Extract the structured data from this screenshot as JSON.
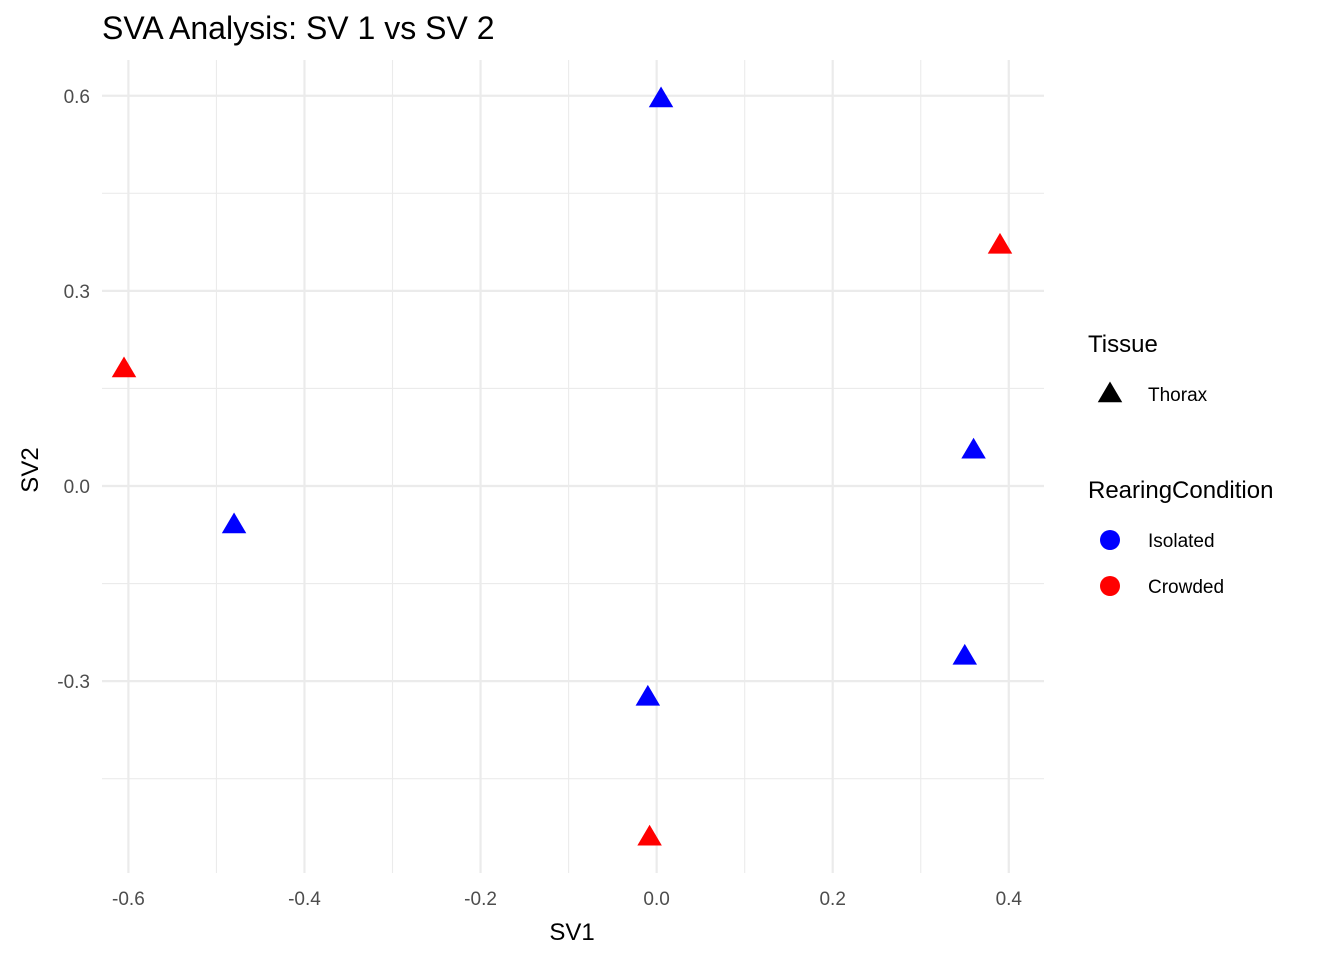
{
  "chart_data": {
    "type": "scatter",
    "title": "SVA Analysis: SV 1  vs SV 2",
    "xlabel": "SV1",
    "ylabel": "SV2",
    "xlim": [
      -0.63,
      0.44
    ],
    "ylim": [
      -0.595,
      0.655
    ],
    "x_ticks": [
      -0.6,
      -0.4,
      -0.2,
      0.0,
      0.2,
      0.4
    ],
    "x_tick_labels": [
      "-0.6",
      "-0.4",
      "-0.2",
      "0.0",
      "0.2",
      "0.4"
    ],
    "y_ticks": [
      -0.3,
      0.0,
      0.3,
      0.6
    ],
    "y_tick_labels": [
      "-0.3",
      "0.0",
      "0.3",
      "0.6"
    ],
    "grid": true,
    "legend_position": "right",
    "legends": [
      {
        "title": "Tissue",
        "entries": [
          {
            "label": "Thorax",
            "shape": "triangle",
            "color": "#000000"
          }
        ]
      },
      {
        "title": "RearingCondition",
        "entries": [
          {
            "label": "Isolated",
            "shape": "circle",
            "color": "#0000FF"
          },
          {
            "label": "Crowded",
            "shape": "circle",
            "color": "#FF0000"
          }
        ]
      }
    ],
    "series": [
      {
        "name": "Isolated",
        "color": "#0000FF",
        "shape": "triangle",
        "points": [
          {
            "x": 0.005,
            "y": 0.595
          },
          {
            "x": 0.36,
            "y": 0.055
          },
          {
            "x": -0.48,
            "y": -0.06
          },
          {
            "x": 0.35,
            "y": -0.262
          },
          {
            "x": -0.01,
            "y": -0.325
          }
        ]
      },
      {
        "name": "Crowded",
        "color": "#FF0000",
        "shape": "triangle",
        "points": [
          {
            "x": 0.39,
            "y": 0.37
          },
          {
            "x": -0.605,
            "y": 0.18
          },
          {
            "x": -0.008,
            "y": -0.54
          }
        ]
      }
    ]
  }
}
